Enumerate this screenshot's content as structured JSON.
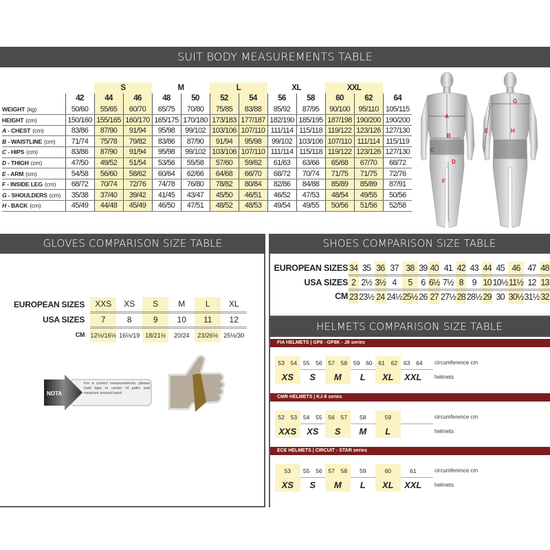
{
  "suit": {
    "title": "SUIT BODY MEASUREMENTS TABLE",
    "groups": [
      {
        "label": "",
        "span": 1
      },
      {
        "label": "S",
        "span": 2,
        "hl": true
      },
      {
        "label": "M",
        "span": 2
      },
      {
        "label": "L",
        "span": 2,
        "hl": true
      },
      {
        "label": "XL",
        "span": 2
      },
      {
        "label": "XXL",
        "span": 2,
        "hl": true
      },
      {
        "label": "",
        "span": 1
      }
    ],
    "sizes": [
      "42",
      "44",
      "46",
      "48",
      "50",
      "52",
      "54",
      "56",
      "58",
      "60",
      "62",
      "64"
    ],
    "highlight_columns": [
      1,
      2,
      5,
      6,
      9,
      10
    ],
    "rows": [
      {
        "letter": "",
        "label": "WEIGHT",
        "unit": "(kg)",
        "values": [
          "50/60",
          "55/65",
          "60/70",
          "65/75",
          "70/80",
          "75/85",
          "83/88",
          "85/92",
          "87/95",
          "90/100",
          "95/110",
          "105/115"
        ]
      },
      {
        "letter": "",
        "label": "HEIGHT",
        "unit": "(cm)",
        "values": [
          "150/160",
          "155/165",
          "160/170",
          "165/175",
          "170/180",
          "173/183",
          "177/187",
          "182/190",
          "185/195",
          "187/198",
          "190/200",
          "190/200"
        ]
      },
      {
        "letter": "A",
        "label": " - CHEST",
        "unit": "(cm)",
        "values": [
          "83/86",
          "87/90",
          "91/94",
          "95/98",
          "99/102",
          "103/106",
          "107/110",
          "111/114",
          "115/118",
          "119/122",
          "123/126",
          "127/130"
        ]
      },
      {
        "letter": "B",
        "label": " - WAISTLINE",
        "unit": "(cm)",
        "values": [
          "71/74",
          "75/78",
          "79/82",
          "83/86",
          "87/90",
          "91/94",
          "95/98",
          "99/102",
          "103/106",
          "107/110",
          "111/114",
          "115/119"
        ]
      },
      {
        "letter": "C",
        "label": " - HIPS",
        "unit": "(cm)",
        "values": [
          "83/86",
          "87/90",
          "91/94",
          "95/98",
          "99/102",
          "103/106",
          "107/110",
          "111/114",
          "115/118",
          "119/122",
          "123/126",
          "127/130"
        ]
      },
      {
        "letter": "D",
        "label": " - THIGH",
        "unit": "(cm)",
        "values": [
          "47/50",
          "49/52",
          "51/54",
          "53/56",
          "55/58",
          "57/60",
          "59/62",
          "61/63",
          "63/66",
          "65/68",
          "67/70",
          "68/72"
        ]
      },
      {
        "letter": "E",
        "label": " - ARM",
        "unit": "(cm)",
        "values": [
          "54/58",
          "56/60",
          "58/62",
          "60/64",
          "62/66",
          "64/68",
          "66/70",
          "68/72",
          "70/74",
          "71/75",
          "71/75",
          "72/76"
        ]
      },
      {
        "letter": "F",
        "label": " - INSIDE LEG",
        "unit": "(cm)",
        "values": [
          "68/72",
          "70/74",
          "72/76",
          "74/78",
          "76/80",
          "78/82",
          "80/84",
          "82/86",
          "84/88",
          "85/89",
          "85/89",
          "87/91"
        ]
      },
      {
        "letter": "G",
        "label": " - SHOULDERS",
        "unit": "(cm)",
        "values": [
          "35/38",
          "37/40",
          "39/42",
          "41/45",
          "43/47",
          "45/50",
          "46/51",
          "46/52",
          "47/53",
          "48/54",
          "49/55",
          "50/56"
        ]
      },
      {
        "letter": "H",
        "label": " - BACK",
        "unit": "(cm)",
        "values": [
          "45/49",
          "44/48",
          "45/49",
          "46/50",
          "47/51",
          "48/52",
          "48/53",
          "49/54",
          "49/55",
          "50/56",
          "51/56",
          "52/58"
        ]
      }
    ],
    "figure_labels": {
      "front": [
        "A",
        "B",
        "C",
        "D",
        "F"
      ],
      "back": [
        "G",
        "E",
        "H"
      ]
    }
  },
  "gloves": {
    "title": "GLOVES COMPARISON SIZE TABLE",
    "rows": [
      {
        "key": "EUROPEAN SIZES",
        "values": [
          "XXS",
          "XS",
          "S",
          "M",
          "L",
          "XL"
        ]
      },
      {
        "key": "USA SIZES",
        "values": [
          "7",
          "8",
          "9",
          "10",
          "11",
          "12"
        ]
      },
      {
        "key": "CM",
        "values": [
          "12½/16½",
          "16½/19",
          "18/21½",
          "20/24",
          "23/26½",
          "25½/30"
        ]
      }
    ],
    "highlight_columns": [
      0,
      2,
      4
    ],
    "nota_label": "NOTA",
    "nota_text": "For a correct measurements: please hold tape in center of palm and measure around hand."
  },
  "shoes": {
    "title": "SHOES COMPARISON SIZE TABLE",
    "rows": [
      {
        "key": "EUROPEAN SIZES",
        "values": [
          "34",
          "35",
          "36",
          "37",
          "38",
          "39",
          "40",
          "41",
          "42",
          "43",
          "44",
          "45",
          "46",
          "47",
          "48"
        ]
      },
      {
        "key": "USA SIZES",
        "values": [
          "2",
          "2½",
          "3½",
          "4",
          "5",
          "6",
          "6½",
          "7½",
          "8",
          "9",
          "10",
          "10½",
          "11½",
          "12",
          "13"
        ]
      },
      {
        "key": "CM",
        "values": [
          "23",
          "23½",
          "24",
          "24½",
          "25½",
          "26",
          "27",
          "27½",
          "28",
          "28½",
          "29",
          "30",
          "30½",
          "31½",
          "32"
        ]
      }
    ],
    "highlight_columns": [
      0,
      2,
      4,
      6,
      8,
      10,
      12,
      14
    ]
  },
  "helmets": {
    "title": "HELMETS COMPARISON SIZE TABLE",
    "circumference_label": "circumference cm",
    "helmets_label": "helmets",
    "series": [
      {
        "title": "FIA HELMETS | GP8 - GP8K - J8 series",
        "groups": [
          {
            "size": "XS",
            "nums": [
              "53",
              "54"
            ],
            "hl": true
          },
          {
            "size": "S",
            "nums": [
              "55",
              "56"
            ]
          },
          {
            "size": "M",
            "nums": [
              "57",
              "58"
            ],
            "hl": true
          },
          {
            "size": "L",
            "nums": [
              "59",
              "60"
            ]
          },
          {
            "size": "XL",
            "nums": [
              "61",
              "62"
            ],
            "hl": true
          },
          {
            "size": "XXL",
            "nums": [
              "63",
              "64"
            ]
          }
        ]
      },
      {
        "title": "CMR HELMETS | KJ-8 series",
        "groups": [
          {
            "size": "XXS",
            "nums": [
              "52",
              "53"
            ],
            "hl": true
          },
          {
            "size": "XS",
            "nums": [
              "54",
              "55"
            ]
          },
          {
            "size": "S",
            "nums": [
              "56",
              "57"
            ],
            "hl": true
          },
          {
            "size": "M",
            "nums": [
              "58"
            ]
          },
          {
            "size": "L",
            "nums": [
              "59"
            ],
            "hl": true
          }
        ]
      },
      {
        "title": "ECE HELMETS | CIRCUIT - STAR series",
        "groups": [
          {
            "size": "XS",
            "nums": [
              "53"
            ],
            "hl": true
          },
          {
            "size": "S",
            "nums": [
              "55",
              "56"
            ]
          },
          {
            "size": "M",
            "nums": [
              "57",
              "58"
            ],
            "hl": true
          },
          {
            "size": "L",
            "nums": [
              "59"
            ]
          },
          {
            "size": "XL",
            "nums": [
              "60"
            ],
            "hl": true
          },
          {
            "size": "XXL",
            "nums": [
              "61"
            ]
          }
        ]
      }
    ]
  },
  "colors": {
    "header_bg": "#4b4b4b",
    "highlight": "#fbf3c4",
    "helmet_bar": "#7d1d1d",
    "label_red": "#d42020"
  }
}
